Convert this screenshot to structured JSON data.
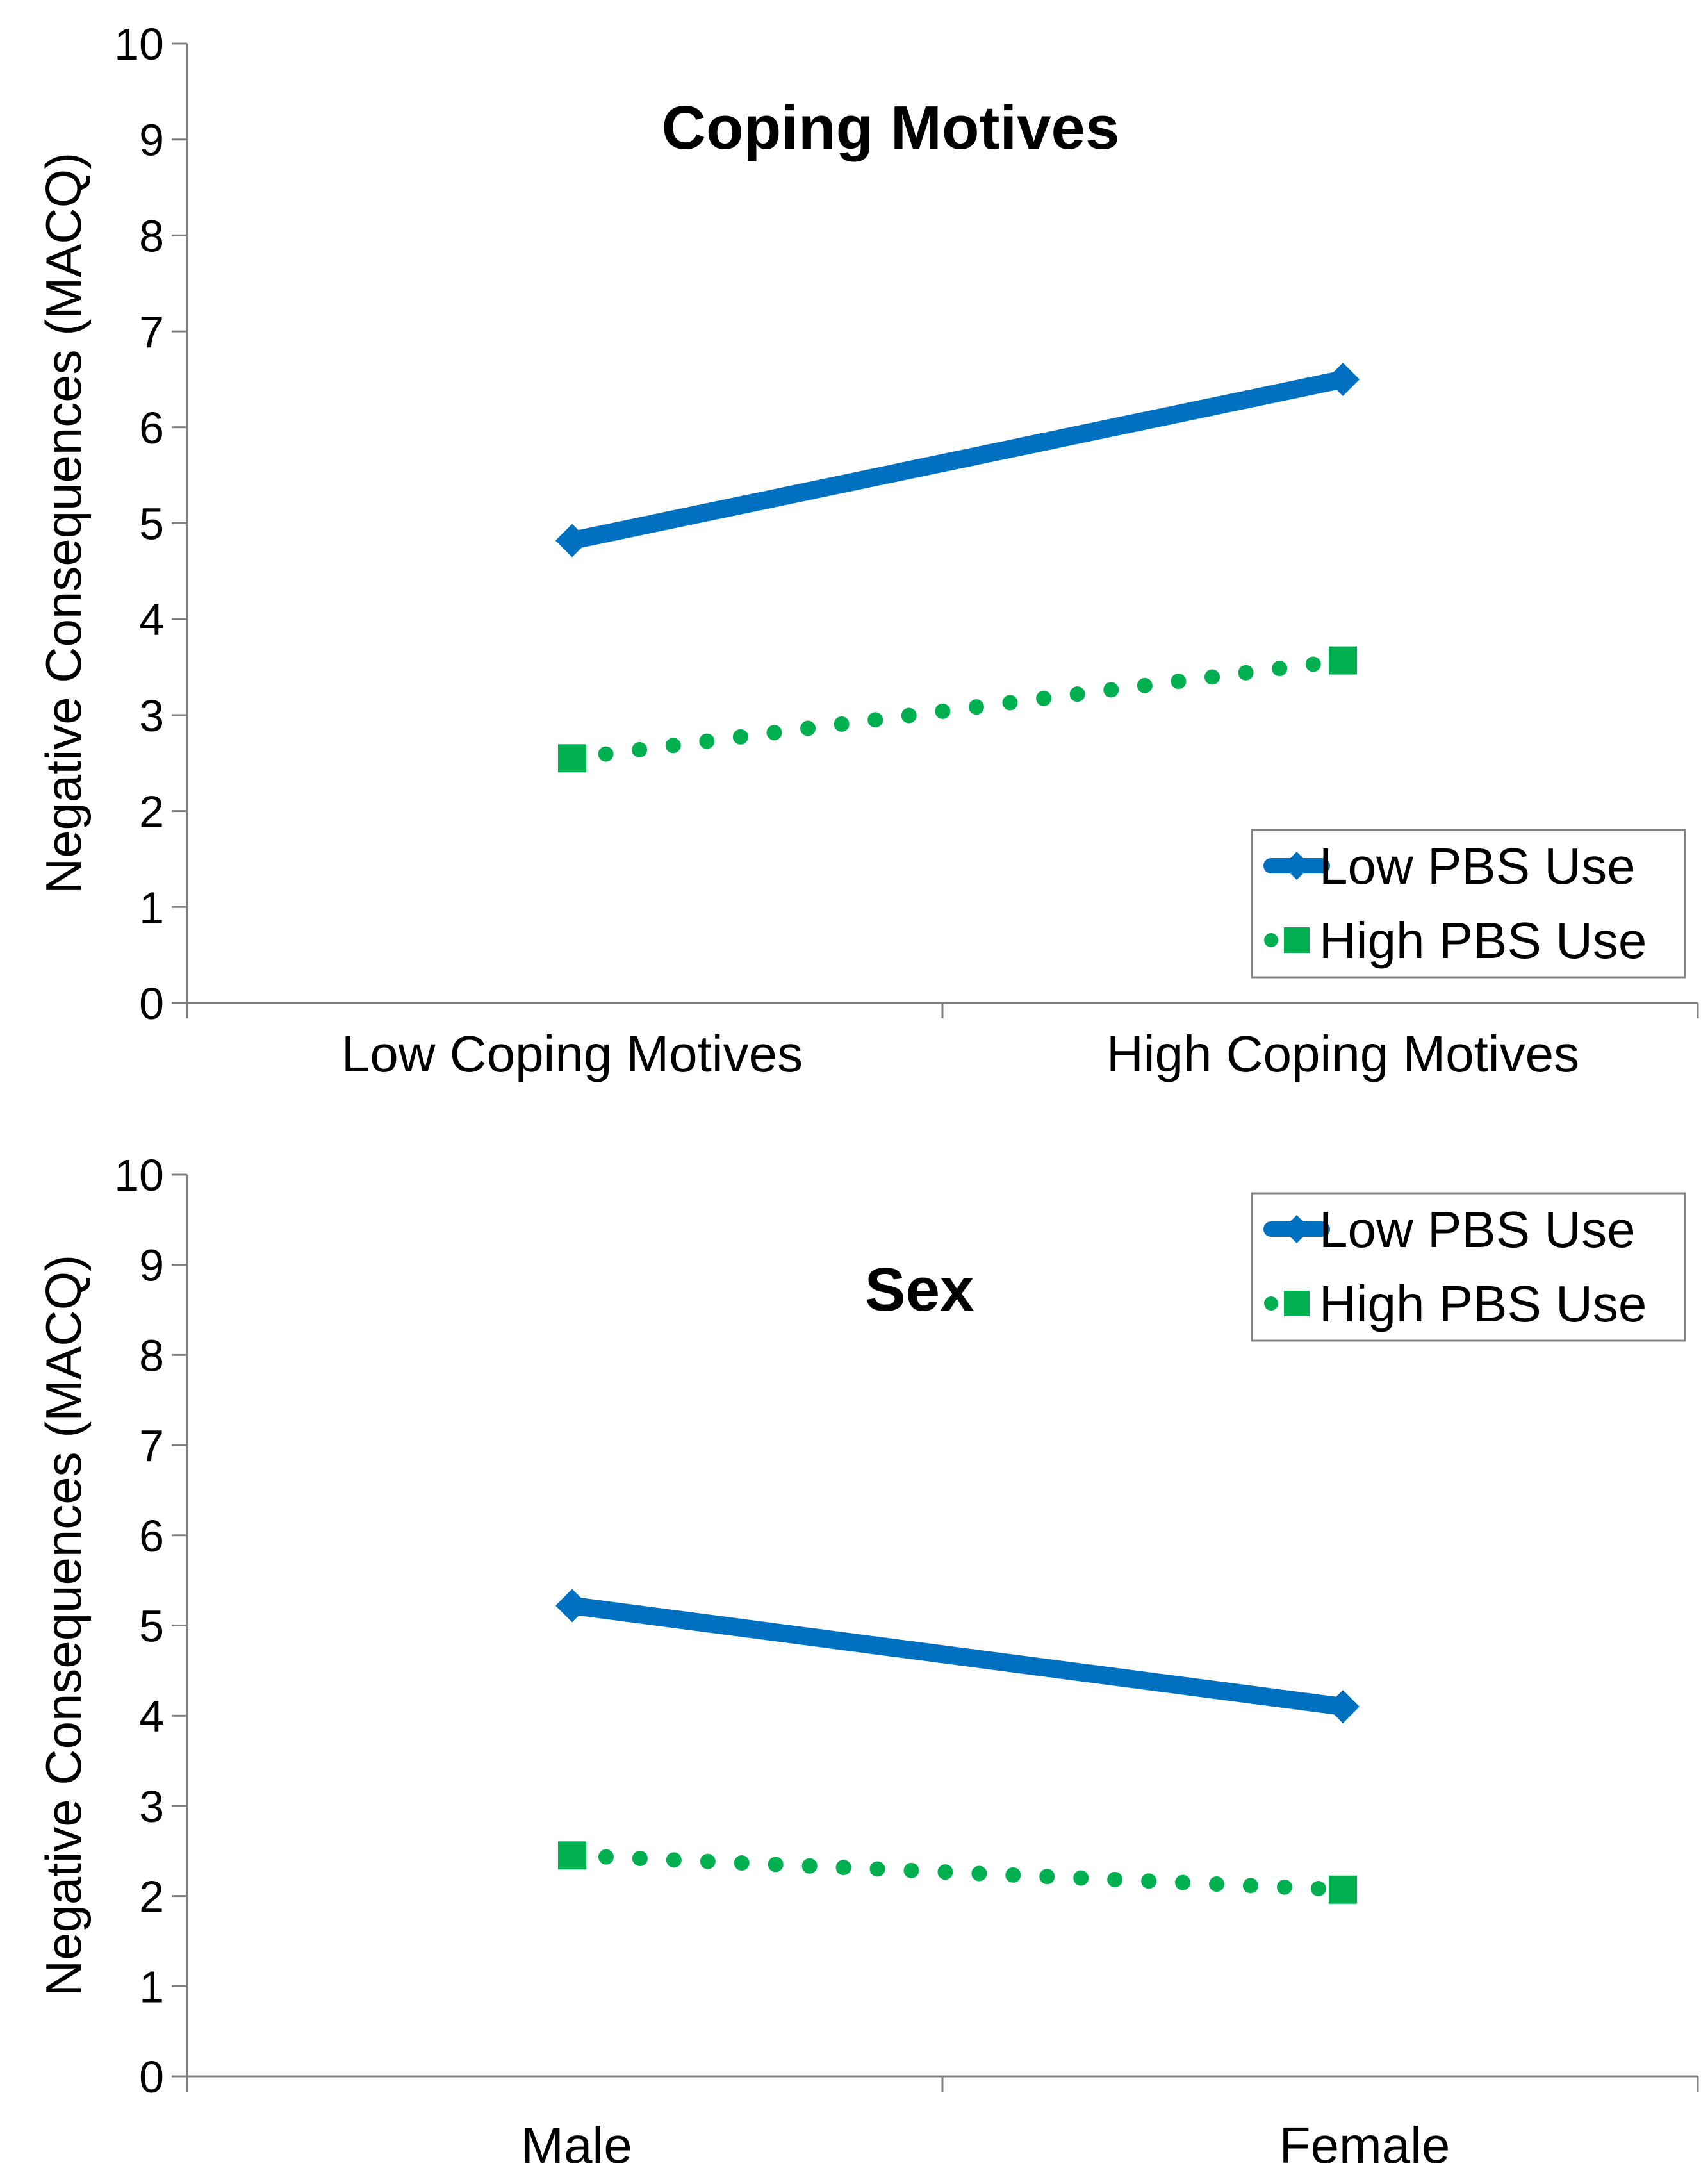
{
  "chart_data": [
    {
      "type": "line",
      "title": "Coping Motives",
      "ylabel": "Negative Consequences (MACQ)",
      "xlabel": "",
      "categories": [
        "Low Coping Motives",
        "High Coping Motives"
      ],
      "ylim": [
        0,
        10
      ],
      "yticks": [
        0,
        1,
        2,
        3,
        4,
        5,
        6,
        7,
        8,
        9,
        10
      ],
      "grid": false,
      "legend_position": "bottom-right",
      "series": [
        {
          "name": "Low PBS Use",
          "values": [
            4.82,
            6.5
          ],
          "color": "#0070C0",
          "style": "solid",
          "marker": "diamond"
        },
        {
          "name": "High PBS Use",
          "values": [
            2.55,
            3.57
          ],
          "color": "#00B050",
          "style": "dotted",
          "marker": "square"
        }
      ]
    },
    {
      "type": "line",
      "title": "Sex",
      "ylabel": "Negative Consequences (MACQ)",
      "xlabel": "",
      "categories": [
        "Male",
        "Female"
      ],
      "ylim": [
        0,
        10
      ],
      "yticks": [
        0,
        1,
        2,
        3,
        4,
        5,
        6,
        7,
        8,
        9,
        10
      ],
      "grid": false,
      "legend_position": "top-right",
      "series": [
        {
          "name": "Low PBS Use",
          "values": [
            5.22,
            4.1
          ],
          "color": "#0070C0",
          "style": "solid",
          "marker": "diamond"
        },
        {
          "name": "High PBS Use",
          "values": [
            2.45,
            2.07
          ],
          "color": "#00B050",
          "style": "dotted",
          "marker": "square"
        }
      ]
    }
  ]
}
